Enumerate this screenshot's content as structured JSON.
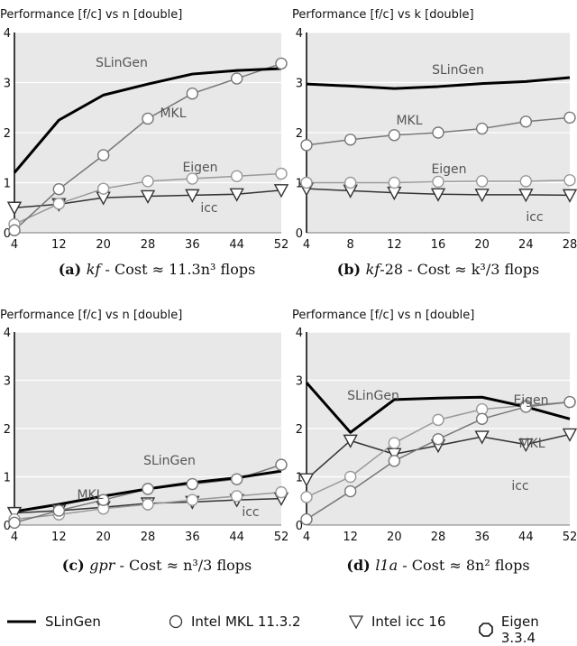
{
  "chart_data": [
    {
      "type": "line",
      "title": "Performance [f/c] vs n [double]",
      "caption": {
        "label": "(a)",
        "name": "kf",
        "text": " - Cost ≈ 11.3n³ flops"
      },
      "x": [
        4,
        12,
        20,
        28,
        36,
        44,
        52
      ],
      "ylim": [
        0,
        4
      ],
      "yticks": [
        0,
        1,
        2,
        3,
        4
      ],
      "grid": true,
      "series": [
        {
          "name": "SLinGen",
          "values": [
            1.2,
            2.25,
            2.75,
            2.97,
            3.17,
            3.24,
            3.28
          ]
        },
        {
          "name": "MKL",
          "values": [
            0.05,
            0.87,
            1.55,
            2.28,
            2.78,
            3.08,
            3.38
          ]
        },
        {
          "name": "Eigen",
          "values": [
            0.17,
            0.58,
            0.88,
            1.03,
            1.08,
            1.13,
            1.18
          ]
        },
        {
          "name": "icc",
          "values": [
            0.5,
            0.57,
            0.7,
            0.73,
            0.75,
            0.77,
            0.85
          ]
        }
      ],
      "labels": [
        {
          "text": "SLinGen",
          "series": "SLinGen"
        },
        {
          "text": "MKL",
          "series": "MKL"
        },
        {
          "text": "Eigen",
          "series": "Eigen"
        },
        {
          "text": "icc",
          "series": "icc"
        }
      ]
    },
    {
      "type": "line",
      "title": "Performance [f/c] vs k [double]",
      "caption": {
        "label": "(b)",
        "name": "kf",
        "text": "-28 - Cost ≈ k³/3 flops"
      },
      "x": [
        4,
        8,
        12,
        16,
        20,
        24,
        28
      ],
      "ylim": [
        0,
        4
      ],
      "yticks": [
        0,
        1,
        2,
        3,
        4
      ],
      "grid": true,
      "series": [
        {
          "name": "SLinGen",
          "values": [
            2.97,
            2.93,
            2.88,
            2.92,
            2.98,
            3.02,
            3.1
          ]
        },
        {
          "name": "MKL",
          "values": [
            1.75,
            1.86,
            1.95,
            2.0,
            2.08,
            2.22,
            2.3
          ]
        },
        {
          "name": "Eigen",
          "values": [
            1.0,
            1.0,
            1.0,
            1.02,
            1.03,
            1.03,
            1.05
          ]
        },
        {
          "name": "icc",
          "values": [
            0.88,
            0.84,
            0.8,
            0.77,
            0.76,
            0.76,
            0.75
          ]
        }
      ],
      "labels": [
        {
          "text": "SLinGen",
          "series": "SLinGen"
        },
        {
          "text": "MKL",
          "series": "MKL"
        },
        {
          "text": "Eigen",
          "series": "Eigen"
        },
        {
          "text": "icc",
          "series": "icc"
        }
      ]
    },
    {
      "type": "line",
      "title": "Performance [f/c] vs n [double]",
      "caption": {
        "label": "(c)",
        "name": "gpr",
        "text": " - Cost ≈ n³/3 flops"
      },
      "x": [
        4,
        12,
        20,
        28,
        36,
        44,
        52
      ],
      "ylim": [
        0,
        4
      ],
      "yticks": [
        0,
        1,
        2,
        3,
        4
      ],
      "grid": true,
      "series": [
        {
          "name": "SLinGen",
          "values": [
            0.28,
            0.43,
            0.6,
            0.75,
            0.88,
            0.98,
            1.12
          ]
        },
        {
          "name": "MKL",
          "values": [
            0.05,
            0.3,
            0.52,
            0.75,
            0.85,
            0.95,
            1.25
          ]
        },
        {
          "name": "Eigen",
          "values": [
            0.12,
            0.22,
            0.34,
            0.43,
            0.52,
            0.6,
            0.68
          ]
        },
        {
          "name": "icc",
          "values": [
            0.25,
            0.3,
            0.37,
            0.45,
            0.48,
            0.52,
            0.55
          ]
        }
      ],
      "labels": [
        {
          "text": "SLinGen",
          "series": "SLinGen"
        },
        {
          "text": "MKL",
          "series": "MKL"
        },
        {
          "text": "icc",
          "series": "icc"
        }
      ]
    },
    {
      "type": "line",
      "title": "Performance [f/c] vs n [double]",
      "caption": {
        "label": "(d)",
        "name": "l1a",
        "text": " - Cost ≈ 8n² flops"
      },
      "x": [
        4,
        12,
        20,
        28,
        36,
        44,
        52
      ],
      "ylim": [
        0,
        4
      ],
      "yticks": [
        0,
        1,
        2,
        3,
        4
      ],
      "grid": true,
      "series": [
        {
          "name": "SLinGen",
          "values": [
            2.95,
            1.92,
            2.6,
            2.63,
            2.65,
            2.45,
            2.2
          ]
        },
        {
          "name": "MKL",
          "values": [
            0.12,
            0.7,
            1.33,
            1.78,
            2.2,
            2.45,
            2.55
          ]
        },
        {
          "name": "Eigen",
          "values": [
            0.58,
            1.0,
            1.7,
            2.18,
            2.4,
            2.48,
            2.55
          ]
        },
        {
          "name": "icc",
          "values": [
            0.95,
            1.75,
            1.47,
            1.65,
            1.83,
            1.67,
            1.88
          ]
        }
      ],
      "labels": [
        {
          "text": "SLinGen",
          "series": "SLinGen"
        },
        {
          "text": "Eigen",
          "series": "Eigen"
        },
        {
          "text": "MKL",
          "series": "MKL"
        },
        {
          "text": "icc",
          "series": "icc"
        }
      ]
    }
  ],
  "legend": [
    {
      "label": "SLinGen",
      "marker": "line"
    },
    {
      "label": "Intel MKL 11.3.2",
      "marker": "circle"
    },
    {
      "label": "Intel icc 16",
      "marker": "triangle-down"
    },
    {
      "label": "Eigen 3.3.4",
      "marker": "octagon"
    }
  ],
  "colors": {
    "plot_bg": "#e8e8e8",
    "grid": "#ffffff",
    "slingen": "#000000",
    "mkl": "#777777",
    "eigen": "#999999",
    "icc": "#333333",
    "label_text": "#555555"
  },
  "series_markers": {
    "SLinGen": "none",
    "MKL": "circle",
    "Eigen": "circle",
    "icc": "triangle-down"
  }
}
